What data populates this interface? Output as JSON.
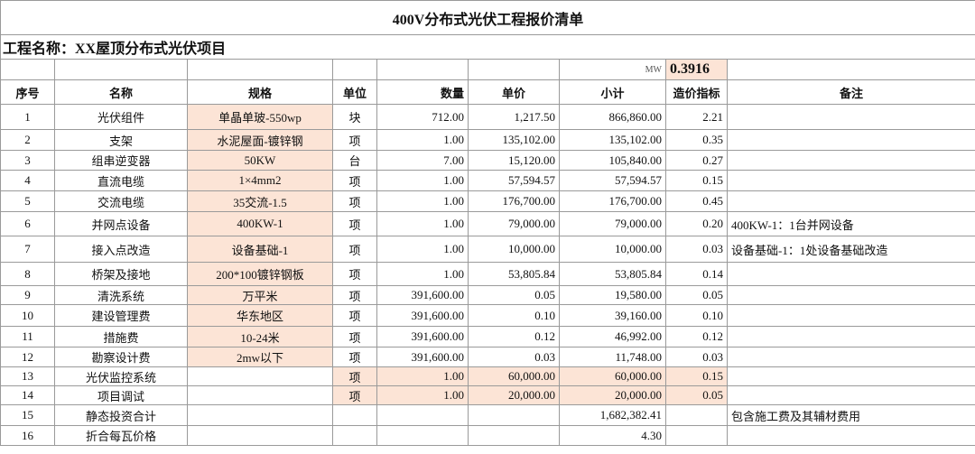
{
  "title": "400V分布式光伏工程报价清单",
  "project": "工程名称：XX屋顶分布式光伏项目",
  "mw_label": "MW",
  "mw_value": "0.3916",
  "headers": [
    "序号",
    "名称",
    "规格",
    "单位",
    "数量",
    "单价",
    "小计",
    "造价指标",
    "备注"
  ],
  "rows": [
    [
      "1",
      "光伏组件",
      "单晶单玻-550wp",
      "块",
      "712.00",
      "1,217.50",
      "866,860.00",
      "2.21",
      null
    ],
    [
      "2",
      "支架",
      "水泥屋面-镀锌钢",
      "项",
      "1.00",
      "135,102.00",
      "135,102.00",
      "0.35",
      null
    ],
    [
      "3",
      "组串逆变器",
      "50KW",
      "台",
      "7.00",
      "15,120.00",
      "105,840.00",
      "0.27",
      null
    ],
    [
      "4",
      "直流电缆",
      "1×4mm2",
      "项",
      "1.00",
      "57,594.57",
      "57,594.57",
      "0.15",
      null
    ],
    [
      "5",
      "交流电缆",
      "35交流-1.5",
      "项",
      "1.00",
      "176,700.00",
      "176,700.00",
      "0.45",
      null
    ],
    [
      "6",
      "并网点设备",
      "400KW-1",
      "项",
      "1.00",
      "79,000.00",
      "79,000.00",
      "0.20",
      "400KW-1：1台并网设备"
    ],
    [
      "7",
      "接入点改造",
      "设备基础-1",
      "项",
      "1.00",
      "10,000.00",
      "10,000.00",
      "0.03",
      "设备基础-1：1处设备基础改造"
    ],
    [
      "8",
      "桥架及接地",
      "200*100镀锌钢板",
      "项",
      "1.00",
      "53,805.84",
      "53,805.84",
      "0.14",
      null
    ],
    [
      "9",
      "清洗系统",
      "万平米",
      "项",
      "391,600.00",
      "0.05",
      "19,580.00",
      "0.05",
      null
    ],
    [
      "10",
      "建设管理费",
      "华东地区",
      "项",
      "391,600.00",
      "0.10",
      "39,160.00",
      "0.10",
      null
    ],
    [
      "11",
      "措施费",
      "10-24米",
      "项",
      "391,600.00",
      "0.12",
      "46,992.00",
      "0.12",
      null
    ],
    [
      "12",
      "勘察设计费",
      "2mw以下",
      "项",
      "391,600.00",
      "0.03",
      "11,748.00",
      "0.03",
      null
    ],
    [
      "13",
      "光伏监控系统",
      null,
      "项",
      "1.00",
      "60,000.00",
      "60,000.00",
      "0.15",
      null
    ],
    [
      "14",
      "项目调试",
      null,
      "项",
      "1.00",
      "20,000.00",
      "20,000.00",
      "0.05",
      null
    ],
    [
      "15",
      "静态投资合计",
      null,
      null,
      null,
      null,
      "1,682,382.41",
      null,
      "包含施工费及其辅材费用"
    ],
    [
      "16",
      "折合每瓦价格",
      null,
      null,
      null,
      null,
      "4.30",
      null,
      null
    ]
  ]
}
